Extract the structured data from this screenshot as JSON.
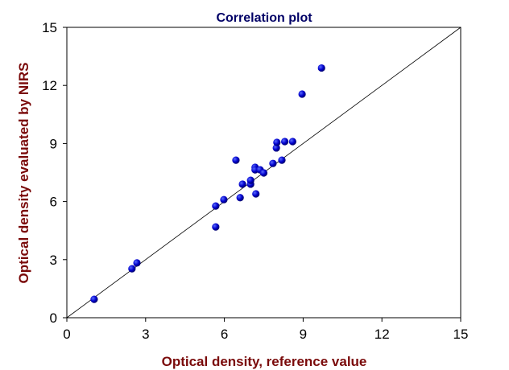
{
  "chart_data": {
    "type": "scatter",
    "title": "Correlation plot",
    "xlabel": "Optical density, reference value",
    "ylabel": "Optical density evaluated by NIRS",
    "xlim": [
      0,
      15
    ],
    "ylim": [
      0,
      15
    ],
    "xticks": [
      "0",
      "3",
      "6",
      "9",
      "12",
      "15"
    ],
    "yticks": [
      "0",
      "3",
      "6",
      "9",
      "12",
      "15"
    ],
    "grid": false,
    "reference_line": "y = x",
    "marker_color": "#0000cc",
    "title_color": "#000066",
    "axis_label_color": "#7a0a0a",
    "points": [
      {
        "x": 1.04,
        "y": 0.95
      },
      {
        "x": 2.48,
        "y": 2.53
      },
      {
        "x": 2.67,
        "y": 2.83
      },
      {
        "x": 5.67,
        "y": 4.69
      },
      {
        "x": 5.67,
        "y": 5.77
      },
      {
        "x": 5.98,
        "y": 6.1
      },
      {
        "x": 6.6,
        "y": 6.2
      },
      {
        "x": 6.69,
        "y": 6.9
      },
      {
        "x": 6.44,
        "y": 8.14
      },
      {
        "x": 7.0,
        "y": 6.9
      },
      {
        "x": 7.0,
        "y": 7.1
      },
      {
        "x": 7.2,
        "y": 6.4
      },
      {
        "x": 7.17,
        "y": 7.77
      },
      {
        "x": 7.17,
        "y": 7.64
      },
      {
        "x": 7.36,
        "y": 7.64
      },
      {
        "x": 7.5,
        "y": 7.48
      },
      {
        "x": 7.85,
        "y": 7.97
      },
      {
        "x": 8.19,
        "y": 8.14
      },
      {
        "x": 7.98,
        "y": 8.77
      },
      {
        "x": 8.0,
        "y": 9.06
      },
      {
        "x": 8.3,
        "y": 9.1
      },
      {
        "x": 8.6,
        "y": 9.1
      },
      {
        "x": 8.96,
        "y": 11.55
      },
      {
        "x": 9.7,
        "y": 12.9
      }
    ]
  }
}
